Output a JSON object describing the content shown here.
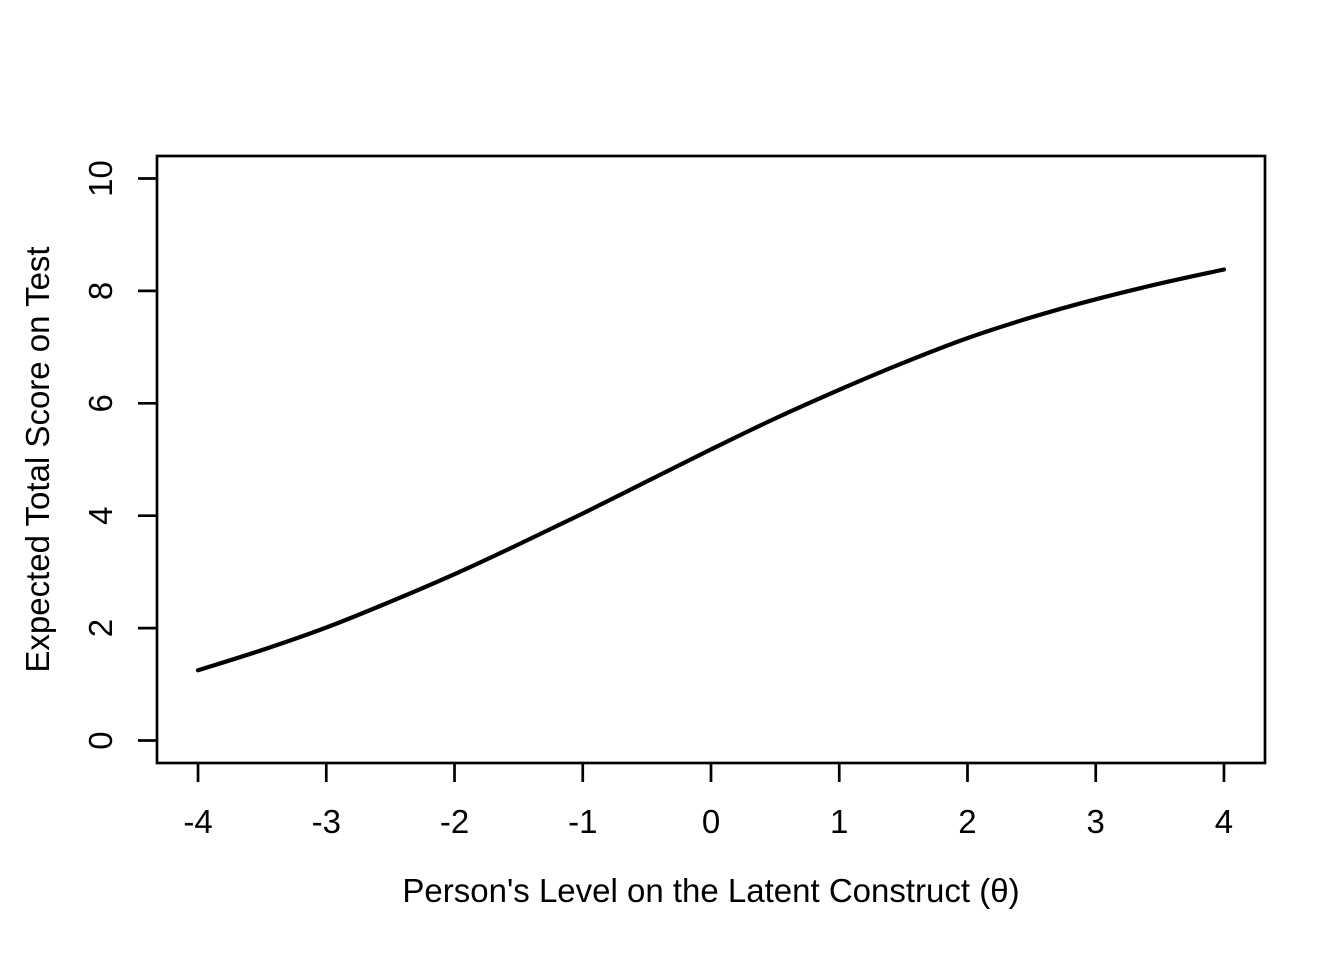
{
  "chart_data": {
    "type": "line",
    "title": "",
    "xlabel": "Person's Level on the Latent Construct (θ)",
    "ylabel": "Expected Total Score on Test",
    "x_ticks": [
      -4,
      -3,
      -2,
      -1,
      0,
      1,
      2,
      3,
      4
    ],
    "y_ticks": [
      0,
      2,
      4,
      6,
      8,
      10
    ],
    "xlim": [
      -4.32,
      4.32
    ],
    "ylim": [
      -0.4,
      10.4
    ],
    "x_data_range": [
      -4,
      4
    ],
    "y_axis_range": [
      0,
      10
    ],
    "grid": false,
    "legend": "none",
    "series": [
      {
        "name": "Test characteristic curve (expected total score)",
        "color": "#000000",
        "x": [
          -4,
          -3.5,
          -3,
          -2.5,
          -2,
          -1.5,
          -1,
          -0.5,
          0,
          0.5,
          1,
          1.5,
          2,
          2.5,
          3,
          3.5,
          4
        ],
        "y": [
          1.25,
          1.61,
          2.01,
          2.47,
          2.96,
          3.49,
          4.04,
          4.61,
          5.18,
          5.73,
          6.24,
          6.72,
          7.16,
          7.53,
          7.85,
          8.13,
          8.38
        ]
      }
    ]
  },
  "colors": {
    "foreground": "#000000",
    "background": "#ffffff"
  }
}
